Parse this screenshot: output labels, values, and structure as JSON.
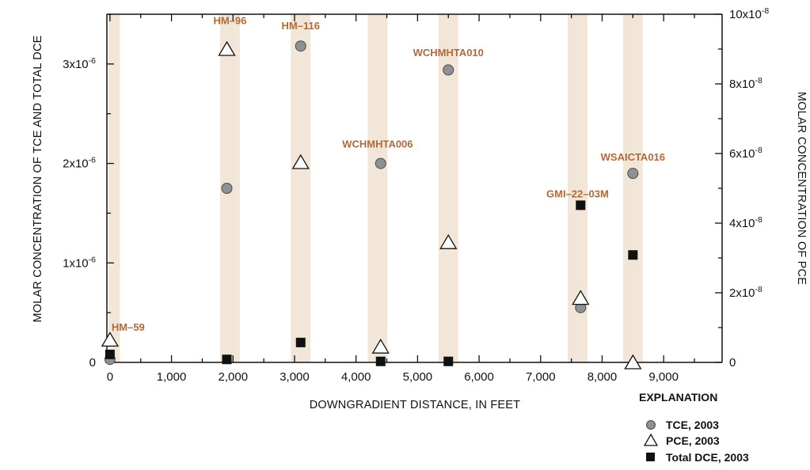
{
  "chart_data": {
    "type": "scatter",
    "xlabel": "DOWNGRADIENT DISTANCE, IN FEET",
    "ylabel_left": "MOLAR CONCENTRATION OF TCE AND TOTAL DCE",
    "ylabel_right": "MOLAR CONCENTRATION OF PCE",
    "xlim": [
      -50,
      9950
    ],
    "ylim_left": [
      0,
      3.5e-06
    ],
    "ylim_right": [
      0,
      1e-07
    ],
    "x_ticks": [
      {
        "value": 0,
        "label": "0"
      },
      {
        "value": 1000,
        "label": "1,000"
      },
      {
        "value": 2000,
        "label": "2,000"
      },
      {
        "value": 3000,
        "label": "3,000"
      },
      {
        "value": 4000,
        "label": "4,000"
      },
      {
        "value": 5000,
        "label": "5,000"
      },
      {
        "value": 6000,
        "label": "6,000"
      },
      {
        "value": 7000,
        "label": "7,000"
      },
      {
        "value": 8000,
        "label": "8,000"
      },
      {
        "value": 9000,
        "label": "9,000"
      }
    ],
    "y_left_ticks": [
      {
        "value": 0,
        "base": "0",
        "exp": ""
      },
      {
        "value": 1e-06,
        "base": "1x10",
        "exp": "-6"
      },
      {
        "value": 2e-06,
        "base": "2x10",
        "exp": "-6"
      },
      {
        "value": 3e-06,
        "base": "3x10",
        "exp": "-6"
      }
    ],
    "y_right_ticks": [
      {
        "value": 0,
        "base": "0",
        "exp": ""
      },
      {
        "value": 2e-08,
        "base": "2x10",
        "exp": "-8"
      },
      {
        "value": 4e-08,
        "base": "4x10",
        "exp": "-8"
      },
      {
        "value": 6e-08,
        "base": "6x10",
        "exp": "-8"
      },
      {
        "value": 8e-08,
        "base": "8x10",
        "exp": "-8"
      },
      {
        "value": 1e-07,
        "base": "10x10",
        "exp": "-8"
      }
    ],
    "wells": [
      {
        "name": "HM–59",
        "x": 0,
        "label_y": 3.2e-07
      },
      {
        "name": "HM–96",
        "x": 1950,
        "label_y": 3.4e-06
      },
      {
        "name": "HM–116",
        "x": 3100,
        "label_y": 3.35e-06
      },
      {
        "name": "WCHMHTA006",
        "x": 4350,
        "label_y": 2.16e-06
      },
      {
        "name": "WCHMHTA010",
        "x": 5500,
        "label_y": 3.08e-06
      },
      {
        "name": "GMI–22–03M",
        "x": 7600,
        "label_y": 1.66e-06
      },
      {
        "name": "WSAICTA016",
        "x": 8500,
        "label_y": 2.03e-06
      }
    ],
    "series": [
      {
        "name": "TCE, 2003",
        "marker": "circle",
        "axis": "left",
        "points": [
          {
            "x": 0,
            "y": 3e-08
          },
          {
            "x": 1900,
            "y": 1.75e-06
          },
          {
            "x": 3100,
            "y": 3.18e-06
          },
          {
            "x": 4400,
            "y": 2e-06
          },
          {
            "x": 5500,
            "y": 2.94e-06
          },
          {
            "x": 7650,
            "y": 5.5e-07
          },
          {
            "x": 8500,
            "y": 1.9e-06
          }
        ]
      },
      {
        "name": "PCE, 2003",
        "marker": "triangle",
        "axis": "right",
        "points": [
          {
            "x": 0,
            "y": 6.5e-09
          },
          {
            "x": 1900,
            "y": 9e-08
          },
          {
            "x": 3100,
            "y": 5.75e-08
          },
          {
            "x": 4400,
            "y": 4.5e-09
          },
          {
            "x": 5500,
            "y": 3.45e-08
          },
          {
            "x": 7650,
            "y": 1.85e-08
          },
          {
            "x": 8500,
            "y": 0
          }
        ]
      },
      {
        "name": "Total DCE, 2003",
        "marker": "square",
        "axis": "left",
        "points": [
          {
            "x": 0,
            "y": 8e-08
          },
          {
            "x": 1900,
            "y": 3e-08
          },
          {
            "x": 3100,
            "y": 2e-07
          },
          {
            "x": 4400,
            "y": 1e-08
          },
          {
            "x": 5500,
            "y": 1e-08
          },
          {
            "x": 7650,
            "y": 1.58e-06
          },
          {
            "x": 8500,
            "y": 1.08e-06
          }
        ]
      }
    ],
    "legend": {
      "title": "EXPLANATION",
      "position": "bottom-right",
      "items": [
        {
          "label": "TCE, 2003",
          "marker": "circle"
        },
        {
          "label": "PCE, 2003",
          "marker": "triangle"
        },
        {
          "label": "Total DCE, 2003",
          "marker": "square"
        }
      ]
    },
    "colors": {
      "band": "#f2e6d9",
      "circle_fill": "#8f9294",
      "circle_stroke": "#4a4a4a",
      "square": "#111111",
      "label": "#b06a3a",
      "axis": "#111111"
    }
  }
}
